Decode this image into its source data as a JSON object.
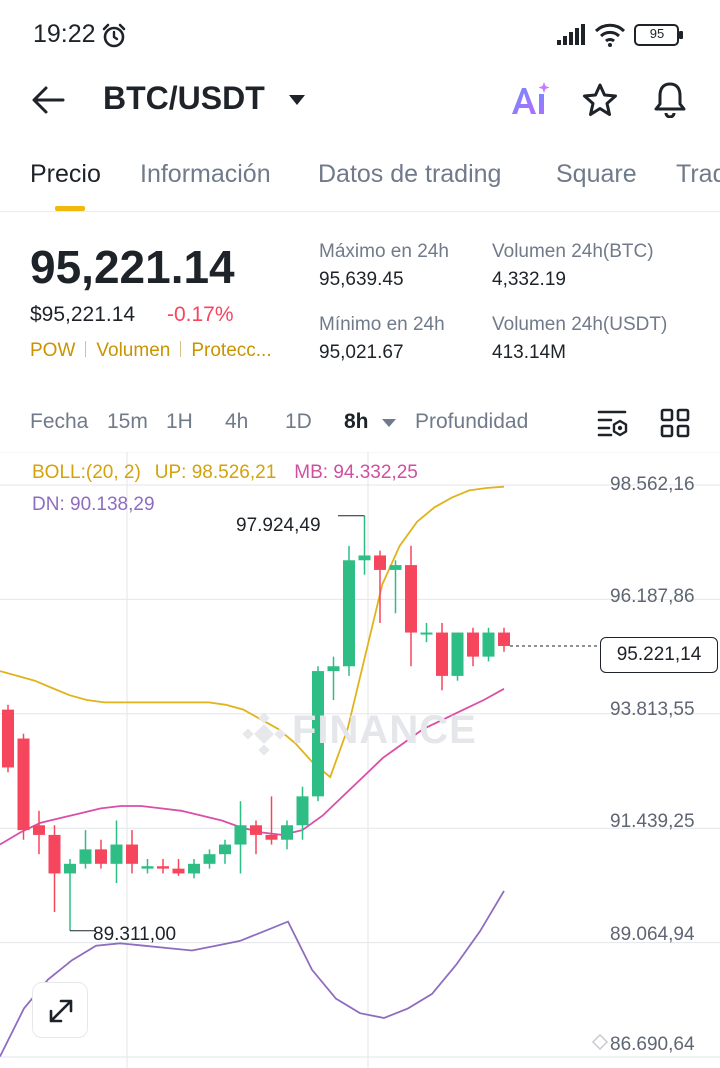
{
  "status_bar": {
    "time": "19:22",
    "battery": "95"
  },
  "header": {
    "pair": "BTC/USDT"
  },
  "tabs": [
    {
      "label": "Precio",
      "active": true
    },
    {
      "label": "Información",
      "active": false
    },
    {
      "label": "Datos de trading",
      "active": false
    },
    {
      "label": "Square",
      "active": false
    },
    {
      "label": "Trad",
      "active": false
    }
  ],
  "price": {
    "last": "95,221.14",
    "usd": "$95,221.14",
    "change": "-0.17%",
    "tags": [
      "POW",
      "Volumen",
      "Protecc..."
    ]
  },
  "stats": {
    "high_label": "Máximo en 24h",
    "high_value": "95,639.45",
    "low_label": "Mínimo en 24h",
    "low_value": "95,021.67",
    "vol_btc_label": "Volumen 24h(BTC)",
    "vol_btc_value": "4,332.19",
    "vol_usdt_label": "Volumen 24h(USDT)",
    "vol_usdt_value": "413.14M"
  },
  "intervals": {
    "fecha": "Fecha",
    "m15": "15m",
    "h1": "1H",
    "h4": "4h",
    "d1": "1D",
    "h8": "8h",
    "depth": "Profundidad"
  },
  "chart": {
    "boll_label": "BOLL:(20, 2)",
    "boll_up": "UP: 98.526,21",
    "boll_mb": "MB: 94.332,25",
    "boll_dn": "DN: 90.138,29",
    "y_axis": [
      "98.562,16",
      "96.187,86",
      "93.813,55",
      "91.439,25",
      "89.064,94",
      "86.690,64"
    ],
    "current_price": "95.221,14",
    "high_marker": "97.924,49",
    "low_marker": "89.311,00",
    "watermark": "FINANCE",
    "colors": {
      "up": "#2ebd85",
      "down": "#f6465d",
      "boll_up": "#e0b31c",
      "boll_mid": "#d94ea7",
      "boll_low": "#8e6dc1"
    }
  },
  "chart_data": {
    "type": "candlestick",
    "y_ticks": [
      98562.16,
      96187.86,
      93813.55,
      91439.25,
      89064.94,
      86690.64
    ],
    "ylim": [
      86690.64,
      98562.16
    ],
    "candles": [
      {
        "o": 93900,
        "h": 94000,
        "l": 92600,
        "c": 92700
      },
      {
        "o": 93300,
        "h": 93400,
        "l": 91200,
        "c": 91400
      },
      {
        "o": 91500,
        "h": 91800,
        "l": 90900,
        "c": 91300
      },
      {
        "o": 91300,
        "h": 91500,
        "l": 89700,
        "c": 90500
      },
      {
        "o": 90500,
        "h": 90800,
        "l": 89311,
        "c": 90700
      },
      {
        "o": 90700,
        "h": 91400,
        "l": 90600,
        "c": 91000
      },
      {
        "o": 91000,
        "h": 91200,
        "l": 90600,
        "c": 90700
      },
      {
        "o": 90700,
        "h": 91600,
        "l": 90300,
        "c": 91100
      },
      {
        "o": 91100,
        "h": 91400,
        "l": 90500,
        "c": 90700
      },
      {
        "o": 90600,
        "h": 90800,
        "l": 90500,
        "c": 90650
      },
      {
        "o": 90650,
        "h": 90800,
        "l": 90500,
        "c": 90600
      },
      {
        "o": 90600,
        "h": 90800,
        "l": 90450,
        "c": 90500
      },
      {
        "o": 90500,
        "h": 90800,
        "l": 90400,
        "c": 90700
      },
      {
        "o": 90700,
        "h": 91000,
        "l": 90600,
        "c": 90900
      },
      {
        "o": 90900,
        "h": 91200,
        "l": 90700,
        "c": 91100
      },
      {
        "o": 91100,
        "h": 92000,
        "l": 90500,
        "c": 91500
      },
      {
        "o": 91500,
        "h": 91600,
        "l": 90900,
        "c": 91300
      },
      {
        "o": 91300,
        "h": 92100,
        "l": 91100,
        "c": 91200
      },
      {
        "o": 91200,
        "h": 91600,
        "l": 91000,
        "c": 91500
      },
      {
        "o": 91500,
        "h": 92300,
        "l": 91200,
        "c": 92100
      },
      {
        "o": 92100,
        "h": 94800,
        "l": 92000,
        "c": 94700
      },
      {
        "o": 94700,
        "h": 95000,
        "l": 94100,
        "c": 94800
      },
      {
        "o": 94800,
        "h": 97300,
        "l": 94600,
        "c": 97000
      },
      {
        "o": 97000,
        "h": 97924.49,
        "l": 96700,
        "c": 97100
      },
      {
        "o": 97100,
        "h": 97200,
        "l": 95700,
        "c": 96800
      },
      {
        "o": 96800,
        "h": 97000,
        "l": 95900,
        "c": 96900
      },
      {
        "o": 96900,
        "h": 97300,
        "l": 94800,
        "c": 95500
      },
      {
        "o": 95500,
        "h": 95700,
        "l": 95300,
        "c": 95500
      },
      {
        "o": 95500,
        "h": 95700,
        "l": 94300,
        "c": 94600
      },
      {
        "o": 94600,
        "h": 95500,
        "l": 94500,
        "c": 95500
      },
      {
        "o": 95500,
        "h": 95600,
        "l": 94800,
        "c": 95000
      },
      {
        "o": 95000,
        "h": 95600,
        "l": 94900,
        "c": 95500
      },
      {
        "o": 95500,
        "h": 95600,
        "l": 95100,
        "c": 95221.14
      }
    ],
    "boll_upper": [
      94700,
      94600,
      94500,
      94350,
      94200,
      94100,
      94050,
      94050,
      94050,
      94050,
      94050,
      94050,
      94050,
      94000,
      93900,
      93700,
      93500,
      93200,
      92800,
      92500,
      93500,
      95000,
      96500,
      97300,
      97800,
      98100,
      98300,
      98450,
      98500,
      98526.21
    ],
    "boll_mid": [
      91100,
      91350,
      91550,
      91650,
      91750,
      91850,
      91900,
      91900,
      91850,
      91800,
      91700,
      91600,
      91450,
      91350,
      91300,
      91400,
      91700,
      92100,
      92500,
      92900,
      93200,
      93500,
      93700,
      93900,
      94100,
      94332.25
    ],
    "boll_lower": [
      86700,
      87700,
      88300,
      88700,
      89000,
      89050,
      89000,
      88950,
      88900,
      89000,
      89100,
      89300,
      89500,
      88500,
      87900,
      87600,
      87500,
      87700,
      88000,
      88600,
      89300,
      90138.29
    ]
  }
}
